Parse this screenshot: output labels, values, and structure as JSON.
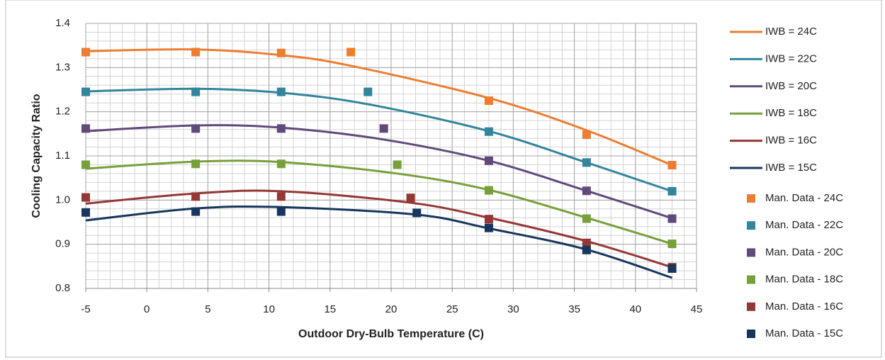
{
  "chart_data": {
    "type": "line",
    "xlabel": "Outdoor Dry-Bulb Temperature (C)",
    "ylabel": "Cooling Capacity Ratio",
    "xlim": [
      -5,
      45
    ],
    "xticks": [
      -5,
      0,
      5,
      10,
      15,
      20,
      25,
      30,
      35,
      40,
      45
    ],
    "ylim": [
      0.8,
      1.4
    ],
    "yticks": [
      0.8,
      0.9,
      {
        "value": 1,
        "label": "1.0"
      },
      1.1,
      1.2,
      1.3,
      1.4
    ],
    "grid": true,
    "xminor": 1,
    "yminor": 0.02,
    "legend": "right",
    "series": [
      {
        "name": "IWB = 24C",
        "style": "line",
        "color": "#ed7d31",
        "x": [
          -5,
          4,
          11,
          16.7,
          28,
          36,
          43
        ],
        "values": [
          1.337,
          1.341,
          1.328,
          1.304,
          1.231,
          1.158,
          1.079
        ]
      },
      {
        "name": "IWB = 22C",
        "style": "line",
        "color": "#31859c",
        "x": [
          -5,
          4,
          11,
          18.1,
          28,
          36,
          43
        ],
        "values": [
          1.246,
          1.252,
          1.243,
          1.217,
          1.156,
          1.085,
          1.02
        ]
      },
      {
        "name": "IWB = 20C",
        "style": "line",
        "color": "#604a7b",
        "x": [
          -5,
          4,
          11,
          19.4,
          28,
          36,
          43
        ],
        "values": [
          1.156,
          1.169,
          1.164,
          1.137,
          1.089,
          1.021,
          0.959
        ]
      },
      {
        "name": "IWB = 18C",
        "style": "line",
        "color": "#77a03a",
        "x": [
          -5,
          4,
          11,
          20.5,
          28,
          36,
          43
        ],
        "values": [
          1.071,
          1.087,
          1.086,
          1.06,
          1.023,
          0.96,
          0.901
        ]
      },
      {
        "name": "IWB = 16C",
        "style": "line",
        "color": "#953735",
        "x": [
          -5,
          4,
          11,
          21.6,
          28,
          36,
          43
        ],
        "values": [
          0.992,
          1.015,
          1.02,
          0.994,
          0.96,
          0.907,
          0.848
        ]
      },
      {
        "name": "IWB = 15C",
        "style": "line",
        "color": "#17365d",
        "x": [
          -5,
          4,
          11,
          22.1,
          28,
          36,
          43
        ],
        "values": [
          0.954,
          0.981,
          0.984,
          0.967,
          0.936,
          0.888,
          0.824
        ]
      },
      {
        "name": "Man. Data - 24C",
        "style": "marker",
        "color": "#ed7d31",
        "x": [
          -5,
          4,
          11,
          16.7,
          28,
          36,
          43
        ],
        "values": [
          1.335,
          1.335,
          1.333,
          1.335,
          1.225,
          1.148,
          1.079
        ]
      },
      {
        "name": "Man. Data - 22C",
        "style": "marker",
        "color": "#31859c",
        "x": [
          -5,
          4,
          11,
          18.1,
          28,
          36,
          43
        ],
        "values": [
          1.245,
          1.245,
          1.245,
          1.245,
          1.155,
          1.085,
          1.02
        ]
      },
      {
        "name": "Man. Data - 20C",
        "style": "marker",
        "color": "#604a7b",
        "x": [
          -5,
          4,
          11,
          19.4,
          28,
          36,
          43
        ],
        "values": [
          1.162,
          1.162,
          1.162,
          1.162,
          1.089,
          1.021,
          0.958
        ]
      },
      {
        "name": "Man. Data - 18C",
        "style": "marker",
        "color": "#77a03a",
        "x": [
          -5,
          4,
          11,
          20.5,
          28,
          36,
          43
        ],
        "values": [
          1.08,
          1.082,
          1.082,
          1.08,
          1.022,
          0.958,
          0.901
        ]
      },
      {
        "name": "Man. Data - 16C",
        "style": "marker",
        "color": "#953735",
        "x": [
          -5,
          4,
          11,
          21.6,
          28,
          36,
          43
        ],
        "values": [
          1.006,
          1.008,
          1.008,
          1.005,
          0.957,
          0.903,
          0.848
        ]
      },
      {
        "name": "Man. Data - 15C",
        "style": "marker",
        "color": "#17365d",
        "x": [
          -5,
          4,
          11,
          22.1,
          28,
          36,
          43
        ],
        "values": [
          0.972,
          0.974,
          0.974,
          0.971,
          0.937,
          0.887,
          0.845
        ]
      }
    ]
  }
}
